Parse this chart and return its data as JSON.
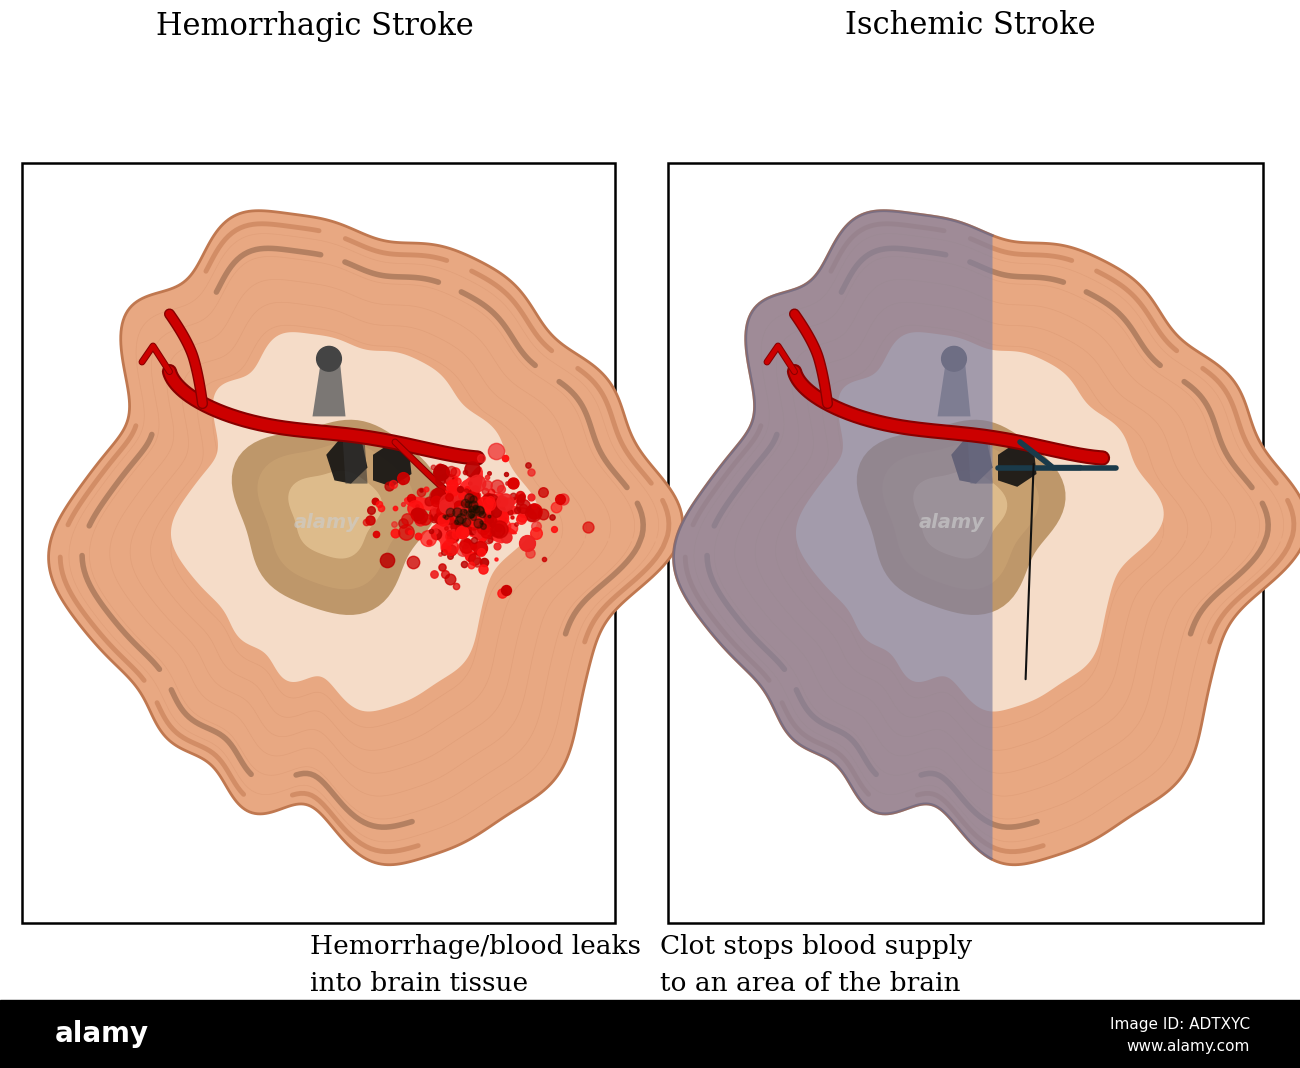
{
  "title_left": "Hemorrhagic Stroke",
  "title_right": "Ischemic Stroke",
  "caption_left": "Hemorrhage/blood leaks\ninto brain tissue",
  "caption_right": "Clot stops blood supply\nto an area of the brain",
  "background_color": "#ffffff",
  "footer_color": "#000000",
  "footer_text_left": "alamy",
  "footer_text_right_1": "Image ID: ADTXYC",
  "footer_text_right_2": "www.alamy.com",
  "brain_outer": "#E8A882",
  "brain_gyri_dark": "#C07850",
  "brain_sulci_light": "#F0C8A8",
  "brain_inner_light": "#F5DCC8",
  "brain_contour": "#D4906A",
  "basal_color": "#C8A070",
  "basal_dark": "#B89060",
  "ventricle_dark": "#111111",
  "artery_red": "#CC0000",
  "artery_dark_red": "#880000",
  "hemorrhage_red": "#DD0000",
  "ischemia_purple": "#8080A0",
  "ischemia_dark": "#606080",
  "clot_dark": "#336688",
  "annotation_line": "#111111",
  "watermark": "#cccccc",
  "title_fontsize": 22,
  "caption_fontsize": 19,
  "footer_fontsize_big": 20,
  "footer_fontsize_small": 11
}
